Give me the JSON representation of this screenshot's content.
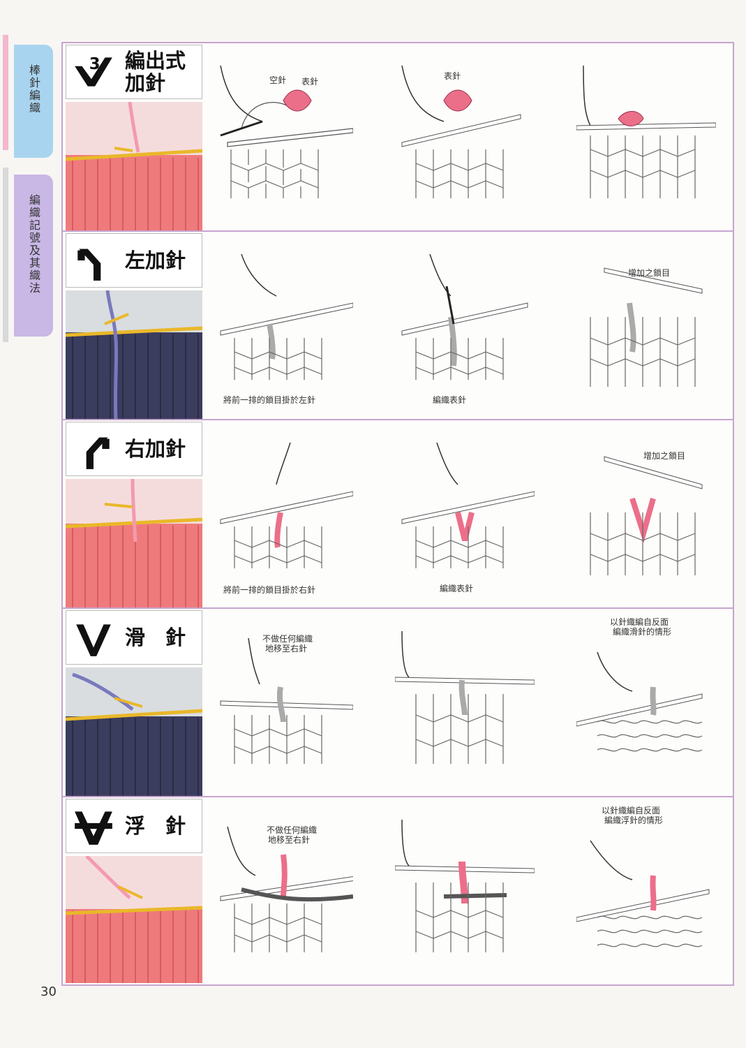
{
  "sidebar": {
    "tabs": [
      {
        "label": "棒針編織",
        "color": "#a9d4ef"
      },
      {
        "label": "編織記號及其織法",
        "color": "#c9b7e5"
      }
    ]
  },
  "page_number": "30",
  "sections": [
    {
      "symbol": "编出式 3",
      "symbol_number": "3",
      "title": "編出式\n加針",
      "photo_color": "#ef7a7c",
      "yarn_color": "#f39ab0",
      "diagram_labels": {
        "d1_a": "空針",
        "d1_b": "表針",
        "d2_a": "表針"
      },
      "captions": {}
    },
    {
      "symbol": "左加針",
      "title": "左加針",
      "photo_color": "#3b3d5e",
      "yarn_color": "#7a79bd",
      "diagram_labels": {
        "d3_a": "增加之鎖目"
      },
      "captions": {
        "c1": "將前一排的鎖目掛於左針",
        "c2": "編織表針"
      }
    },
    {
      "symbol": "右加針",
      "title": "右加針",
      "photo_color": "#ef7a7c",
      "yarn_color": "#f39ab0",
      "diagram_labels": {
        "d3_a": "增加之鎖目"
      },
      "captions": {
        "c1": "將前一排的鎖目掛於右針",
        "c2": "編織表針"
      }
    },
    {
      "symbol": "滑針",
      "title": "滑　針",
      "photo_color": "#3b3d5e",
      "yarn_color": "#7a79bd",
      "diagram_labels": {
        "d1_a": "不做任何編織",
        "d1_b": "地移至右針",
        "d3_a": "以針織編自反面",
        "d3_b": "編織滑針的情形"
      },
      "captions": {}
    },
    {
      "symbol": "浮針",
      "title": "浮　針",
      "photo_color": "#ef7a7c",
      "yarn_color": "#f39ab0",
      "diagram_labels": {
        "d1_a": "不做任何編織",
        "d1_b": "地移至右針",
        "d3_a": "以針織編自反面",
        "d3_b": "編織浮針的情形"
      },
      "captions": {}
    }
  ]
}
